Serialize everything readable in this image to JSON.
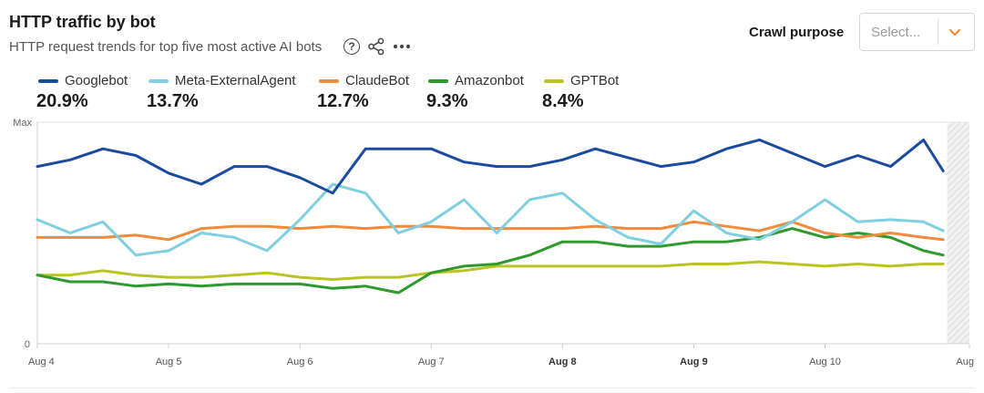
{
  "header": {
    "title": "HTTP traffic by bot",
    "subtitle": "HTTP request trends for top five most active AI bots"
  },
  "filter": {
    "label": "Crawl purpose",
    "placeholder": "Select..."
  },
  "colors": {
    "accent": "#e8893a"
  },
  "icons": [
    "help-icon",
    "share-icon",
    "more-icon",
    "chevron-down-icon"
  ],
  "legend": [
    {
      "name": "Googlebot",
      "value": "20.9%",
      "color": "#1b4a9e"
    },
    {
      "name": "Meta-ExternalAgent",
      "value": "13.7%",
      "color": "#7ecfe0"
    },
    {
      "name": "ClaudeBot",
      "value": "12.7%",
      "color": "#f08a3c"
    },
    {
      "name": "Amazonbot",
      "value": "9.3%",
      "color": "#2e9a2e"
    },
    {
      "name": "GPTBot",
      "value": "8.4%",
      "color": "#b9c424"
    }
  ],
  "chart_data": {
    "type": "line",
    "y_tick_labels": [
      "Max",
      "0"
    ],
    "ylim": [
      0,
      100
    ],
    "xlim": [
      0,
      7.1
    ],
    "x_ticks": [
      {
        "label": "Aug 4",
        "x": 0,
        "bold": false
      },
      {
        "label": "Aug 5",
        "x": 1,
        "bold": false
      },
      {
        "label": "Aug 6",
        "x": 2,
        "bold": false
      },
      {
        "label": "Aug 7",
        "x": 3,
        "bold": false
      },
      {
        "label": "Aug 8",
        "x": 4,
        "bold": true
      },
      {
        "label": "Aug 9",
        "x": 5,
        "bold": true
      },
      {
        "label": "Aug 10",
        "x": 6,
        "bold": false
      },
      {
        "label": "Aug",
        "x": 7.1,
        "bold": false
      }
    ],
    "shaded_region": [
      6.93,
      7.1
    ],
    "x": [
      0,
      0.25,
      0.5,
      0.75,
      1,
      1.25,
      1.5,
      1.75,
      2,
      2.25,
      2.5,
      2.75,
      3,
      3.25,
      3.5,
      3.75,
      4,
      4.25,
      4.5,
      4.75,
      5,
      5.25,
      5.5,
      5.75,
      6,
      6.25,
      6.5,
      6.75,
      6.9
    ],
    "series": [
      {
        "name": "Googlebot",
        "values": [
          80,
          83,
          88,
          85,
          77,
          72,
          80,
          80,
          75,
          68,
          88,
          88,
          88,
          82,
          80,
          80,
          83,
          88,
          84,
          80,
          82,
          88,
          92,
          86,
          80,
          85,
          80,
          92,
          78
        ]
      },
      {
        "name": "Meta-ExternalAgent",
        "values": [
          56,
          50,
          55,
          40,
          42,
          50,
          48,
          42,
          56,
          72,
          68,
          50,
          55,
          65,
          50,
          65,
          68,
          56,
          48,
          45,
          60,
          50,
          47,
          55,
          65,
          55,
          56,
          55,
          51
        ]
      },
      {
        "name": "ClaudeBot",
        "values": [
          48,
          48,
          48,
          49,
          47,
          52,
          53,
          53,
          52,
          53,
          52,
          53,
          53,
          52,
          52,
          52,
          52,
          53,
          52,
          52,
          55,
          53,
          51,
          55,
          50,
          48,
          50,
          48,
          47
        ]
      },
      {
        "name": "Amazonbot",
        "values": [
          31,
          28,
          28,
          26,
          27,
          26,
          27,
          27,
          27,
          25,
          26,
          23,
          32,
          35,
          36,
          40,
          46,
          46,
          44,
          44,
          46,
          46,
          48,
          52,
          48,
          50,
          48,
          42,
          40
        ]
      },
      {
        "name": "GPTBot",
        "values": [
          31,
          31,
          33,
          31,
          30,
          30,
          31,
          32,
          30,
          29,
          30,
          30,
          32,
          33,
          35,
          35,
          35,
          35,
          35,
          35,
          36,
          36,
          37,
          36,
          35,
          36,
          35,
          36,
          36
        ]
      }
    ]
  }
}
